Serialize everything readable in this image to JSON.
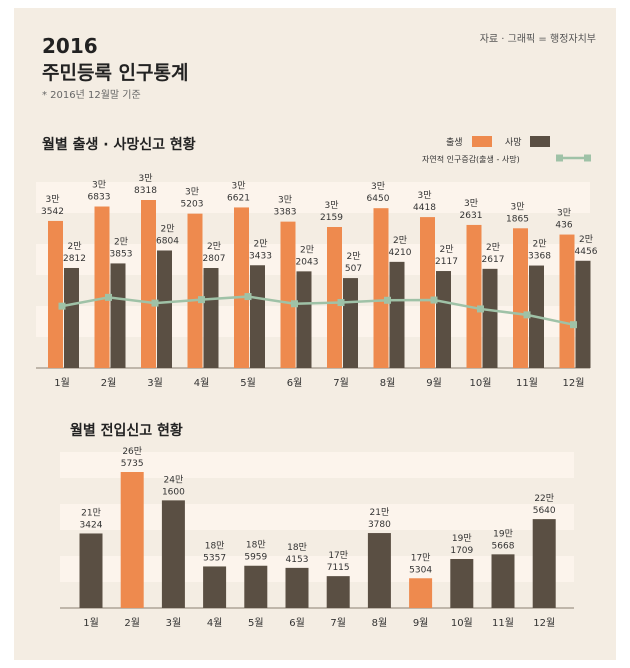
{
  "header": {
    "year": "2016",
    "title": "주민등록 인구통계",
    "note": "* 2016년 12월말 기준",
    "source": "자료 · 그래픽 = 행정자치부"
  },
  "colors": {
    "birth": "#ee8a4e",
    "death": "#5a4f43",
    "natural": "#9fc2a7",
    "stripe": "#fcf4ec",
    "background": "#f4ede3"
  },
  "chart_data": [
    {
      "type": "bar",
      "title": "월별 출생 · 사망신고 현황",
      "categories": [
        "1월",
        "2월",
        "3월",
        "4월",
        "5월",
        "6월",
        "7월",
        "8월",
        "9월",
        "10월",
        "11월",
        "12월"
      ],
      "legend": {
        "birth": "출생",
        "death": "사망",
        "natural": "자연적 인구증감(출생 - 사망)"
      },
      "series": [
        {
          "name": "출생",
          "values": [
            33542,
            36833,
            38318,
            35203,
            36621,
            33383,
            32159,
            36450,
            34418,
            32631,
            31865,
            30436
          ],
          "labels": [
            [
              "3만",
              "3542"
            ],
            [
              "3만",
              "6833"
            ],
            [
              "3만",
              "8318"
            ],
            [
              "3만",
              "5203"
            ],
            [
              "3만",
              "6621"
            ],
            [
              "3만",
              "3383"
            ],
            [
              "3만",
              "2159"
            ],
            [
              "3만",
              "6450"
            ],
            [
              "3만",
              "4418"
            ],
            [
              "3만",
              "2631"
            ],
            [
              "3만",
              "1865"
            ],
            [
              "3만",
              "436"
            ]
          ]
        },
        {
          "name": "사망",
          "values": [
            22812,
            23853,
            26804,
            22807,
            23433,
            22043,
            20507,
            24210,
            22117,
            22617,
            23368,
            24456
          ],
          "labels": [
            [
              "2만",
              "2812"
            ],
            [
              "2만",
              "3853"
            ],
            [
              "2만",
              "6804"
            ],
            [
              "2만",
              "2807"
            ],
            [
              "2만",
              "3433"
            ],
            [
              "2만",
              "2043"
            ],
            [
              "2만",
              "507"
            ],
            [
              "2만",
              "4210"
            ],
            [
              "2만",
              "2117"
            ],
            [
              "2만",
              "2617"
            ],
            [
              "2만",
              "3368"
            ],
            [
              "2만",
              "4456"
            ]
          ]
        },
        {
          "name": "자연적 인구증감",
          "type": "line",
          "values": [
            10730,
            12980,
            11514,
            12396,
            13188,
            11340,
            11652,
            12240,
            12301,
            10014,
            8497,
            5980
          ]
        }
      ],
      "ylim": [
        0,
        42000
      ]
    },
    {
      "type": "bar",
      "title": "월별 전입신고 현황",
      "categories": [
        "1월",
        "2월",
        "3월",
        "4월",
        "5월",
        "6월",
        "7월",
        "8월",
        "9월",
        "10월",
        "11월",
        "12월"
      ],
      "series": [
        {
          "name": "전입",
          "values": [
            213424,
            265735,
            241600,
            185357,
            185959,
            184153,
            177115,
            213780,
            175304,
            191709,
            195668,
            225640
          ],
          "labels": [
            [
              "21만",
              "3424"
            ],
            [
              "26만",
              "5735"
            ],
            [
              "24만",
              "1600"
            ],
            [
              "18만",
              "5357"
            ],
            [
              "18만",
              "5959"
            ],
            [
              "18만",
              "4153"
            ],
            [
              "17만",
              "7115"
            ],
            [
              "21만",
              "3780"
            ],
            [
              "17만",
              "5304"
            ],
            [
              "19만",
              "1709"
            ],
            [
              "19만",
              "5668"
            ],
            [
              "22만",
              "5640"
            ]
          ],
          "highlight": [
            1,
            8
          ]
        }
      ],
      "ylim": [
        0,
        270000
      ]
    }
  ]
}
